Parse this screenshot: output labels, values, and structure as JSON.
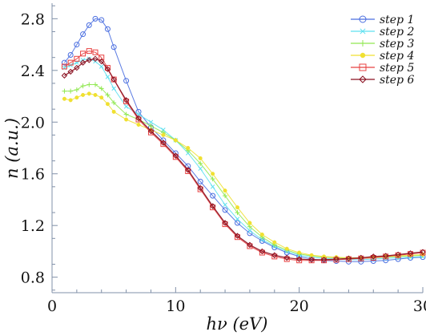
{
  "chart_data": {
    "type": "line",
    "xlabel": "hν (eV)",
    "ylabel": "n (a.u.)",
    "xlim": [
      0,
      30
    ],
    "ylim": [
      0.68,
      2.92
    ],
    "xticks": [
      0,
      10,
      20,
      30
    ],
    "yticks": [
      0.8,
      1.2,
      1.6,
      2.0,
      2.4,
      2.8
    ],
    "xtick_labels": [
      "0",
      "10",
      "20",
      "30"
    ],
    "ytick_labels": [
      "0.8",
      "1.2",
      "1.6",
      "2.0",
      "2.4",
      "2.8"
    ],
    "grid": false,
    "legend_position": "top-right",
    "x": [
      1,
      1.5,
      2,
      2.5,
      3,
      3.5,
      4,
      4.5,
      5,
      6,
      7,
      8,
      9,
      10,
      11,
      12,
      13,
      14,
      15,
      16,
      17,
      18,
      19,
      20,
      21,
      22,
      23,
      24,
      25,
      26,
      27,
      28,
      29,
      30
    ],
    "series": [
      {
        "name": "step 1",
        "color": "#4a6ee0",
        "marker": "circle",
        "values": [
          2.46,
          2.52,
          2.6,
          2.68,
          2.75,
          2.8,
          2.79,
          2.72,
          2.58,
          2.32,
          2.08,
          1.96,
          1.86,
          1.76,
          1.66,
          1.54,
          1.43,
          1.32,
          1.22,
          1.14,
          1.08,
          1.03,
          0.99,
          0.96,
          0.94,
          0.93,
          0.925,
          0.92,
          0.92,
          0.925,
          0.93,
          0.94,
          0.95,
          0.955
        ]
      },
      {
        "name": "step 2",
        "color": "#5ee0f0",
        "marker": "x",
        "values": [
          2.42,
          2.44,
          2.46,
          2.48,
          2.49,
          2.47,
          2.43,
          2.35,
          2.26,
          2.12,
          2.06,
          2.0,
          1.94,
          1.86,
          1.76,
          1.64,
          1.5,
          1.36,
          1.25,
          1.16,
          1.09,
          1.04,
          1.0,
          0.97,
          0.955,
          0.945,
          0.94,
          0.935,
          0.935,
          0.94,
          0.945,
          0.95,
          0.955,
          0.96
        ]
      },
      {
        "name": "step 3",
        "color": "#90e850",
        "marker": "plus",
        "values": [
          2.24,
          2.24,
          2.25,
          2.28,
          2.29,
          2.29,
          2.26,
          2.21,
          2.15,
          2.06,
          2.02,
          1.97,
          1.92,
          1.86,
          1.78,
          1.68,
          1.56,
          1.43,
          1.3,
          1.19,
          1.11,
          1.05,
          1.01,
          0.98,
          0.965,
          0.955,
          0.95,
          0.945,
          0.945,
          0.95,
          0.955,
          0.96,
          0.965,
          0.97
        ]
      },
      {
        "name": "step 4",
        "color": "#f0e030",
        "marker": "dot",
        "values": [
          2.18,
          2.17,
          2.19,
          2.21,
          2.22,
          2.21,
          2.19,
          2.14,
          2.08,
          2.02,
          1.98,
          1.94,
          1.9,
          1.86,
          1.8,
          1.72,
          1.6,
          1.47,
          1.34,
          1.22,
          1.13,
          1.07,
          1.02,
          0.99,
          0.97,
          0.96,
          0.955,
          0.95,
          0.95,
          0.955,
          0.96,
          0.965,
          0.97,
          0.975
        ]
      },
      {
        "name": "step 5",
        "color": "#e84040",
        "marker": "square",
        "values": [
          2.43,
          2.46,
          2.49,
          2.53,
          2.55,
          2.54,
          2.5,
          2.42,
          2.33,
          2.16,
          2.02,
          1.92,
          1.83,
          1.73,
          1.62,
          1.48,
          1.34,
          1.21,
          1.11,
          1.04,
          0.99,
          0.96,
          0.94,
          0.93,
          0.93,
          0.93,
          0.935,
          0.94,
          0.945,
          0.95,
          0.96,
          0.97,
          0.98,
          0.99
        ]
      },
      {
        "name": "step 6",
        "color": "#8a1020",
        "marker": "diamond",
        "values": [
          2.36,
          2.39,
          2.42,
          2.46,
          2.48,
          2.49,
          2.47,
          2.41,
          2.33,
          2.17,
          2.03,
          1.93,
          1.84,
          1.74,
          1.63,
          1.49,
          1.35,
          1.22,
          1.12,
          1.05,
          1.0,
          0.97,
          0.95,
          0.94,
          0.935,
          0.935,
          0.94,
          0.945,
          0.95,
          0.96,
          0.965,
          0.975,
          0.985,
          0.995
        ]
      }
    ]
  }
}
